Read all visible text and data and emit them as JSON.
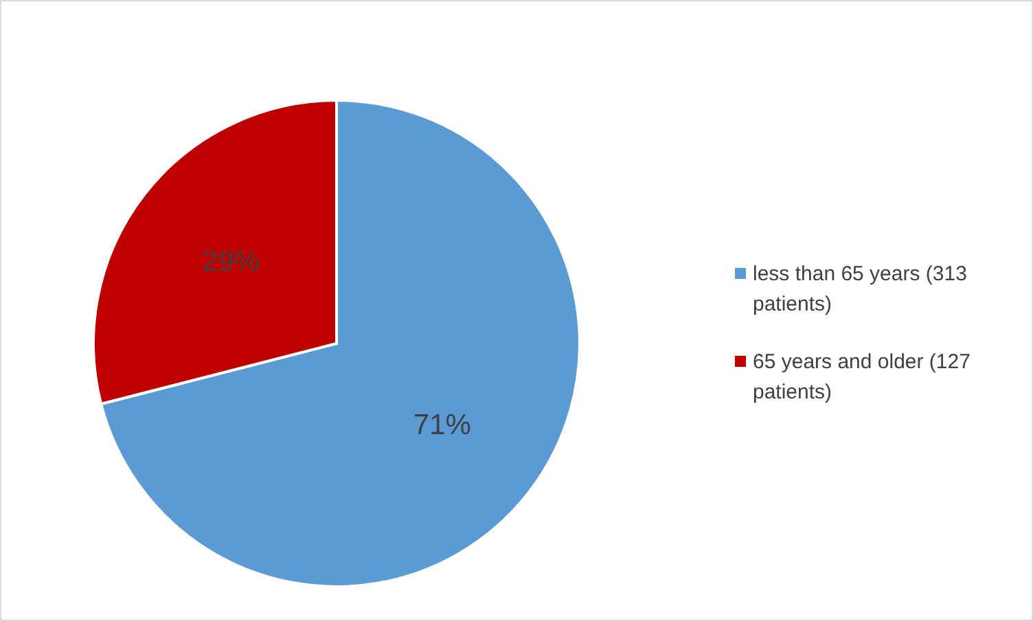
{
  "chart_data": {
    "type": "pie",
    "categories": [
      "less than 65 years (313 patients)",
      "65 years and older (127 patients)"
    ],
    "values": [
      71,
      29
    ],
    "colors": [
      "#5b9bd5",
      "#c00000"
    ],
    "value_labels": [
      "71%",
      "29%"
    ],
    "legend": "right"
  }
}
